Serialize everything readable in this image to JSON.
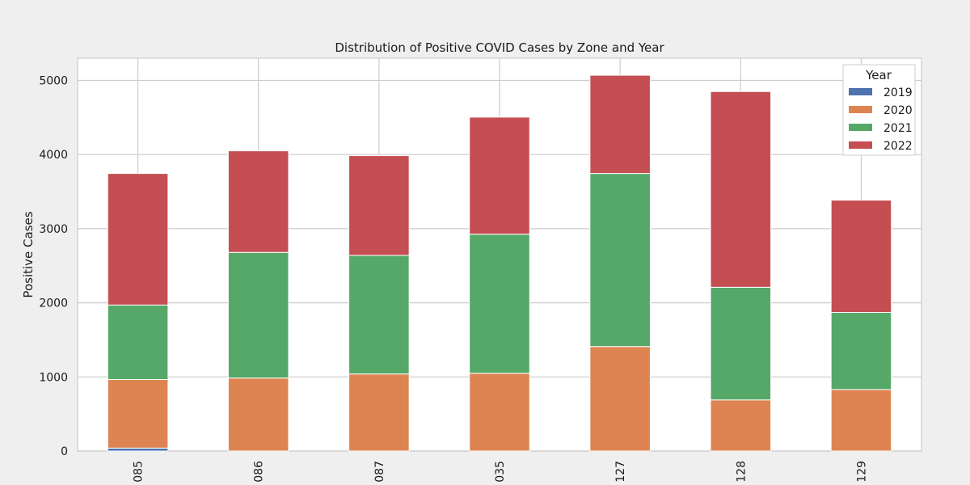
{
  "chart_data": {
    "type": "bar",
    "stacked": true,
    "title": "Distribution of Positive COVID Cases by Zone and Year",
    "xlabel": "",
    "ylabel": "Positive Cases",
    "categories": [
      "085",
      "086",
      "087",
      "035",
      "127",
      "128",
      "129"
    ],
    "series": [
      {
        "name": "2019",
        "values": [
          40,
          0,
          0,
          0,
          0,
          0,
          0
        ],
        "color": "#4c72b0"
      },
      {
        "name": "2020",
        "values": [
          925,
          985,
          1040,
          1050,
          1410,
          690,
          830
        ],
        "color": "#dd8452"
      },
      {
        "name": "2021",
        "values": [
          1005,
          1695,
          1600,
          1875,
          2335,
          1520,
          1040
        ],
        "color": "#55a868"
      },
      {
        "name": "2022",
        "values": [
          1775,
          1370,
          1345,
          1580,
          1325,
          2640,
          1515
        ],
        "color": "#c44e52"
      }
    ],
    "ylim": [
      0,
      5300
    ],
    "yticks": [
      0,
      1000,
      2000,
      3000,
      4000,
      5000
    ],
    "grid": true,
    "legend": {
      "title": "Year",
      "position": "top-right"
    }
  }
}
